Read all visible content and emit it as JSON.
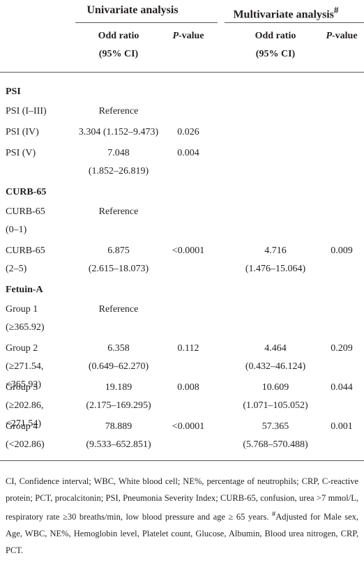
{
  "header": {
    "univariate": "Univariate analysis",
    "multivariate": "Multivariate analysis",
    "multivariate_mark": "#",
    "columns": [
      {
        "line1": "Odd ratio",
        "line2": "(95% CI)"
      },
      {
        "italic": "P",
        "rest": "-value"
      },
      {
        "line1": "Odd ratio",
        "line2": "(95% CI)"
      },
      {
        "italic": "P",
        "rest": "-value"
      }
    ]
  },
  "sections": [
    {
      "title": "PSI",
      "rows": [
        {
          "label": [
            "PSI (I–III)"
          ],
          "uni_or": [
            "Reference"
          ]
        },
        {
          "label": [
            "PSI (IV)"
          ],
          "uni_or": [
            "3.304 (1.152–9.473)"
          ],
          "uni_p": "0.026"
        },
        {
          "label": [
            "PSI (V)"
          ],
          "uni_or": [
            "7.048",
            "(1.852–26.819)"
          ],
          "uni_p": "0.004"
        }
      ]
    },
    {
      "title": "CURB-65",
      "rows": [
        {
          "label": [
            "CURB-65",
            "(0–1)"
          ],
          "uni_or": [
            "Reference"
          ]
        },
        {
          "label": [
            "CURB-65",
            "(2–5)"
          ],
          "uni_or": [
            "6.875",
            "(2.615–18.073)"
          ],
          "uni_p": "<0.0001",
          "multi_or": [
            "4.716",
            "(1.476–15.064)"
          ],
          "multi_p": "0.009"
        }
      ]
    },
    {
      "title": "Fetuin-A",
      "rows": [
        {
          "label": [
            "Group 1",
            "(≥365.92)"
          ],
          "uni_or": [
            "Reference"
          ]
        },
        {
          "label": [
            "Group 2",
            "(≥271.54,",
            "<365.92)"
          ],
          "uni_or": [
            "6.358",
            "(0.649–62.270)"
          ],
          "uni_p": "0.112",
          "multi_or": [
            "4.464",
            "(0.432–46.124)"
          ],
          "multi_p": "0.209"
        },
        {
          "label": [
            "Group 3",
            "(≥202.86,",
            "<271.54)"
          ],
          "uni_or": [
            "19.189",
            "(2.175–169.295)"
          ],
          "uni_p": "0.008",
          "multi_or": [
            "10.609",
            "(1.071–105.052)"
          ],
          "multi_p": "0.044"
        },
        {
          "label": [
            "Group 4",
            "(<202.86)"
          ],
          "uni_or": [
            "78.889",
            "(9.533–652.851)"
          ],
          "uni_p": "<0.0001",
          "multi_or": [
            "57.365",
            "(5.768–570.488)"
          ],
          "multi_p": "0.001"
        }
      ]
    }
  ],
  "footnote": {
    "text1": "CI, Confidence interval; WBC, White blood cell; NE%, percentage of neutrophils; CRP, C-reactive protein; PCT, procalcitonin; PSI, Pneumonia Severity Index; CURB-65, confusion, urea >7 mmol/L, respiratory rate ≥30 breaths/min, low blood pressure and age ≥ 65 years. ",
    "mark": "#",
    "text2": "Adjusted for Male sex, Age, WBC, NE%, Hemoglobin level, Platelet count, Glucose, Albumin, Blood urea nitrogen, CRP, PCT."
  }
}
